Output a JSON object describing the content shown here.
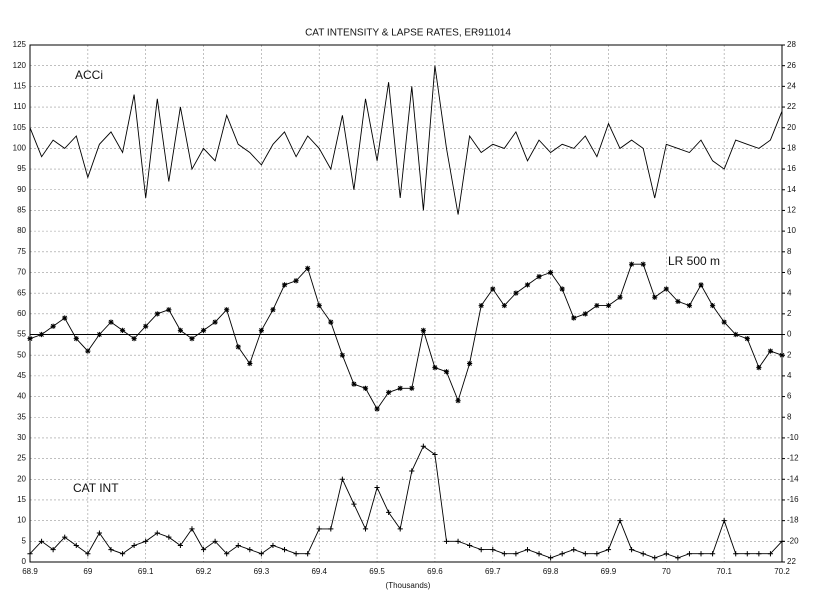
{
  "chart_data": {
    "type": "line",
    "title": "CAT INTENSITY & LAPSE RATES, ER911014",
    "x_label": "(Thousands)",
    "annotations": [
      "ACCi",
      "LR 500 m",
      "CAT INT"
    ],
    "x": [
      68.9,
      68.92,
      68.94,
      68.96,
      68.98,
      69,
      69.02,
      69.04,
      69.06,
      69.08,
      69.1,
      69.12,
      69.14,
      69.16,
      69.18,
      69.2,
      69.22,
      69.24,
      69.26,
      69.28,
      69.3,
      69.32,
      69.34,
      69.36,
      69.38,
      69.4,
      69.42,
      69.44,
      69.46,
      69.48,
      69.5,
      69.52,
      69.54,
      69.56,
      69.58,
      69.6,
      69.62,
      69.64,
      69.66,
      69.68,
      69.7,
      69.72,
      69.74,
      69.76,
      69.78,
      69.8,
      69.82,
      69.84,
      69.86,
      69.88,
      69.9,
      69.92,
      69.94,
      69.96,
      69.98,
      70,
      70.02,
      70.04,
      70.06,
      70.08,
      70.1,
      70.12,
      70.14,
      70.16,
      70.18,
      70.2
    ],
    "series": [
      {
        "name": "ACCi",
        "color": "#000000",
        "marker": "none",
        "values": [
          105,
          98,
          102,
          100,
          103,
          93,
          101,
          104,
          99,
          113,
          88,
          112,
          92,
          110,
          95,
          100,
          97,
          108,
          101,
          99,
          96,
          101,
          104,
          98,
          103,
          100,
          95,
          108,
          90,
          112,
          97,
          116,
          88,
          115,
          85,
          120,
          100,
          84,
          103,
          99,
          101,
          100,
          104,
          97,
          102,
          99,
          101,
          100,
          103,
          98,
          106,
          100,
          102,
          100,
          88,
          101,
          100,
          99,
          102,
          97,
          95,
          102,
          101,
          100,
          102,
          109
        ]
      },
      {
        "name": "LR 500 m",
        "color": "#000000",
        "marker": "star",
        "axis": "y2",
        "values": [
          -0.4,
          0,
          0.8,
          1.6,
          -0.4,
          -1.6,
          0,
          1.2,
          0.4,
          -0.4,
          0.8,
          2,
          2.4,
          0.4,
          -0.4,
          0.4,
          1.2,
          2.4,
          -1.2,
          -2.8,
          0.4,
          2.4,
          4.8,
          5.2,
          6.4,
          2.8,
          1.2,
          -2,
          -4.8,
          -5.2,
          -7.2,
          -5.6,
          -5.2,
          -5.2,
          0.4,
          -3.2,
          -3.6,
          -6.4,
          -2.8,
          2.8,
          4.4,
          2.8,
          4,
          4.8,
          5.6,
          6,
          4.4,
          1.6,
          2,
          2.8,
          2.8,
          3.6,
          6.8,
          6.8,
          3.6,
          4.4,
          3.2,
          2.8,
          4.8,
          2.8,
          1.2,
          0,
          -0.4,
          -3.2,
          -1.6,
          -2
        ]
      },
      {
        "name": "CAT INT",
        "color": "#000000",
        "marker": "plus",
        "values": [
          2,
          5,
          3,
          6,
          4,
          2,
          7,
          3,
          2,
          4,
          5,
          7,
          6,
          4,
          8,
          3,
          5,
          2,
          4,
          3,
          2,
          4,
          3,
          2,
          2,
          8,
          8,
          20,
          14,
          8,
          18,
          12,
          8,
          22,
          28,
          26,
          5,
          5,
          4,
          3,
          3,
          2,
          2,
          3,
          2,
          1,
          2,
          3,
          2,
          2,
          3,
          10,
          3,
          2,
          1,
          2,
          1,
          2,
          2,
          2,
          10,
          2,
          2,
          2,
          2,
          5
        ]
      }
    ],
    "xlim": [
      68.9,
      70.2
    ],
    "xticks": [
      68.9,
      69,
      69.1,
      69.2,
      69.3,
      69.4,
      69.5,
      69.6,
      69.7,
      69.8,
      69.9,
      70,
      70.1,
      70.2
    ],
    "ylim": [
      0,
      125
    ],
    "yticks": [
      0,
      5,
      10,
      15,
      20,
      25,
      30,
      35,
      40,
      45,
      50,
      55,
      60,
      65,
      70,
      75,
      80,
      85,
      90,
      95,
      100,
      105,
      110,
      115,
      120,
      125
    ],
    "y2lim": [
      -22,
      28
    ],
    "y2ticks": [
      {
        "value": -22,
        "label": "22"
      },
      -20,
      -18,
      -16,
      -14,
      -12,
      -10,
      {
        "value": -8,
        "label": "8"
      },
      {
        "value": -6,
        "label": "6"
      },
      {
        "value": -4,
        "label": "4"
      },
      {
        "value": -2,
        "label": "2"
      },
      0,
      2,
      4,
      6,
      8,
      10,
      12,
      14,
      16,
      18,
      20,
      22,
      24,
      26,
      28
    ],
    "grid": true,
    "y2_zero_line": true
  }
}
